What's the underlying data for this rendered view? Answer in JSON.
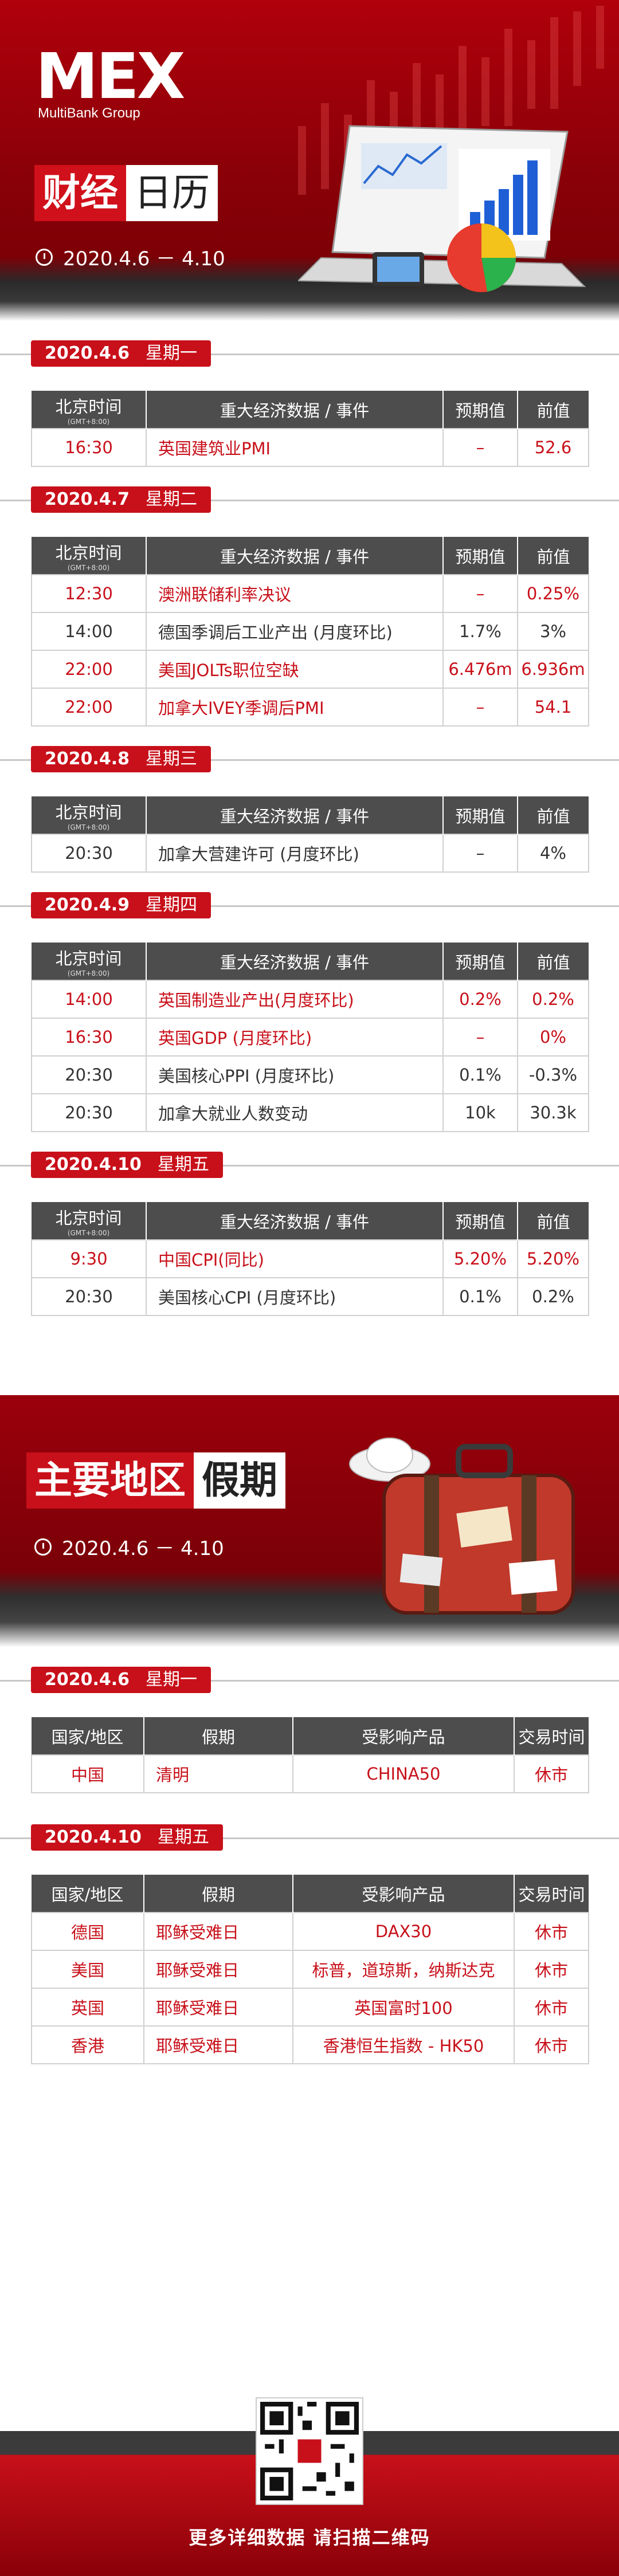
{
  "brand": {
    "logo": "MEX",
    "sub": "MultiBank Group"
  },
  "hero1": {
    "title_a": "财经",
    "title_b": "日历",
    "date": "2020.4.6 － 4.10"
  },
  "cal_headers": {
    "time": "北京时间",
    "gmt": "(GMT+8:00)",
    "event": "重大经济数据 / 事件",
    "forecast": "预期值",
    "prev": "前值"
  },
  "days": [
    {
      "date": "2020.4.6",
      "weekday": "星期一",
      "rows": [
        {
          "time": "16:30",
          "event": "英国建筑业PMI",
          "forecast": "–",
          "prev": "52.6",
          "hi": true
        }
      ]
    },
    {
      "date": "2020.4.7",
      "weekday": "星期二",
      "rows": [
        {
          "time": "12:30",
          "event": "澳洲联储利率决议",
          "forecast": "–",
          "prev": "0.25%",
          "hi": true
        },
        {
          "time": "14:00",
          "event": "德国季调后工业产出 (月度环比)",
          "forecast": "1.7%",
          "prev": "3%",
          "hi": false
        },
        {
          "time": "22:00",
          "event": "美国JOLTs职位空缺",
          "forecast": "6.476m",
          "prev": "6.936m",
          "hi": true
        },
        {
          "time": "22:00",
          "event": "加拿大IVEY季调后PMI",
          "forecast": "–",
          "prev": "54.1",
          "hi": true
        }
      ]
    },
    {
      "date": "2020.4.8",
      "weekday": "星期三",
      "rows": [
        {
          "time": "20:30",
          "event": "加拿大营建许可 (月度环比)",
          "forecast": "–",
          "prev": "4%",
          "hi": false
        }
      ]
    },
    {
      "date": "2020.4.9",
      "weekday": "星期四",
      "rows": [
        {
          "time": "14:00",
          "event": "英国制造业产出(月度环比)",
          "forecast": "0.2%",
          "prev": "0.2%",
          "hi": true
        },
        {
          "time": "16:30",
          "event": "英国GDP (月度环比)",
          "forecast": "–",
          "prev": "0%",
          "hi": true
        },
        {
          "time": "20:30",
          "event": "美国核心PPI (月度环比)",
          "forecast": "0.1%",
          "prev": "-0.3%",
          "hi": false
        },
        {
          "time": "20:30",
          "event": "加拿大就业人数变动",
          "forecast": "10k",
          "prev": "30.3k",
          "hi": false
        }
      ]
    },
    {
      "date": "2020.4.10",
      "weekday": "星期五",
      "rows": [
        {
          "time": "9:30",
          "event": "中国CPI(同比)",
          "forecast": "5.20%",
          "prev": "5.20%",
          "hi": true
        },
        {
          "time": "20:30",
          "event": "美国核心CPI (月度环比)",
          "forecast": "0.1%",
          "prev": "0.2%",
          "hi": false
        }
      ]
    }
  ],
  "hero2": {
    "title_a": "主要地区",
    "title_b": "假期",
    "date": "2020.4.6 － 4.10"
  },
  "hol_headers": {
    "country": "国家/地区",
    "holiday": "假期",
    "product": "受影响产品",
    "trading": "交易时间"
  },
  "holidays": [
    {
      "date": "2020.4.6",
      "weekday": "星期一",
      "rows": [
        {
          "country": "中国",
          "holiday": "清明",
          "product": "CHINA50",
          "trading": "休市"
        }
      ]
    },
    {
      "date": "2020.4.10",
      "weekday": "星期五",
      "rows": [
        {
          "country": "德国",
          "holiday": "耶稣受难日",
          "product": "DAX30",
          "trading": "休市"
        },
        {
          "country": "美国",
          "holiday": "耶稣受难日",
          "product": "标普，道琼斯，纳斯达克",
          "trading": "休市"
        },
        {
          "country": "英国",
          "holiday": "耶稣受难日",
          "product": "英国富时100",
          "trading": "休市"
        },
        {
          "country": "香港",
          "holiday": "耶稣受难日",
          "product": "香港恒生指数 - HK50",
          "trading": "休市"
        }
      ]
    }
  ],
  "footer": {
    "text": "更多详细数据 请扫描二维码"
  },
  "colors": {
    "brand_red": "#c8101a",
    "dark_gray": "#4d4d4d"
  }
}
